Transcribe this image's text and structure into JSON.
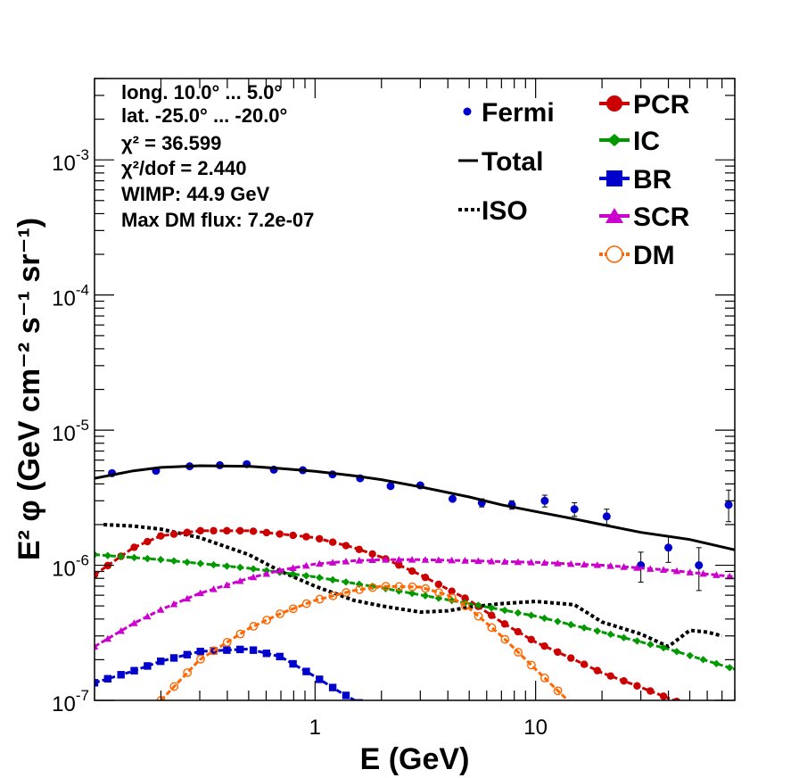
{
  "chart_data": {
    "type": "line",
    "xlabel": "E (GeV)",
    "ylabel": "E² φ (GeV cm⁻² s⁻¹ sr⁻¹)",
    "xscale": "log",
    "yscale": "log",
    "xlim": [
      0.1,
      80
    ],
    "ylim": [
      1e-07,
      0.004
    ],
    "grid": false,
    "legend_placement": "top-right",
    "x_tick_labels": [
      "1",
      "10"
    ],
    "y_tick_labels": [
      {
        "base": "10",
        "exp": "-7"
      },
      {
        "base": "10",
        "exp": "-6"
      },
      {
        "base": "10",
        "exp": "-5"
      },
      {
        "base": "10",
        "exp": "-4"
      },
      {
        "base": "10",
        "exp": "-3"
      }
    ],
    "annotations": [
      "long. 10.0° ... 5.0°",
      "lat. -25.0° ... -20.0°",
      "χ² = 36.599",
      "χ²/dof = 2.440",
      "WIMP: 44.9 GeV",
      "Max DM flux: 7.2e-07"
    ],
    "series": [
      {
        "name": "Fermi",
        "style": "points",
        "color": "#0000cc",
        "x": [
          0.12,
          0.19,
          0.27,
          0.37,
          0.49,
          0.65,
          0.88,
          1.2,
          1.6,
          2.2,
          3.0,
          4.2,
          5.7,
          7.8,
          11,
          15,
          21,
          30,
          40,
          55,
          75
        ],
        "y": [
          4.8e-06,
          5e-06,
          5.4e-06,
          5.5e-06,
          5.6e-06,
          5.1e-06,
          5.05e-06,
          4.7e-06,
          4.4e-06,
          3.85e-06,
          3.9e-06,
          3.1e-06,
          2.9e-06,
          2.8e-06,
          3e-06,
          2.6e-06,
          2.3e-06,
          1e-06,
          1.35e-06,
          1e-06,
          2.8e-06
        ],
        "err_low": [
          0,
          0,
          0,
          0,
          0,
          0,
          0,
          0,
          0,
          0,
          0,
          0,
          2e-07,
          2e-07,
          3e-07,
          3e-07,
          3e-07,
          2.5e-07,
          3e-07,
          3.5e-07,
          7e-07
        ],
        "err_high": [
          0,
          0,
          0,
          0,
          0,
          0,
          0,
          0,
          0,
          0,
          0,
          0,
          2e-07,
          2e-07,
          3e-07,
          3e-07,
          3e-07,
          2.5e-07,
          3e-07,
          3.5e-07,
          8e-07
        ]
      },
      {
        "name": "Total",
        "style": "solid",
        "color": "#000000",
        "x": [
          0.1,
          0.15,
          0.2,
          0.3,
          0.5,
          0.7,
          1,
          1.5,
          2,
          3,
          5,
          7,
          10,
          15,
          20,
          30,
          50,
          80
        ],
        "y": [
          4.4e-06,
          5e-06,
          5.3e-06,
          5.45e-06,
          5.4e-06,
          5.2e-06,
          4.95e-06,
          4.6e-06,
          4.3e-06,
          3.8e-06,
          3.2e-06,
          2.8e-06,
          2.5e-06,
          2.2e-06,
          2e-06,
          1.75e-06,
          1.55e-06,
          1.3e-06
        ]
      },
      {
        "name": "ISO",
        "style": "dotted",
        "color": "#000000",
        "x": [
          0.11,
          0.15,
          0.2,
          0.3,
          0.5,
          0.7,
          1,
          1.5,
          2,
          3,
          4,
          5,
          7,
          10,
          15,
          20,
          30,
          40,
          50,
          60,
          70
        ],
        "y": [
          2e-06,
          1.95e-06,
          1.85e-06,
          1.6e-06,
          1.2e-06,
          9e-07,
          7e-07,
          5.5e-07,
          5e-07,
          4.5e-07,
          4.6e-07,
          4.9e-07,
          5.2e-07,
          5.4e-07,
          5.1e-07,
          3.8e-07,
          3.1e-07,
          2.5e-07,
          3.3e-07,
          3.2e-07,
          3e-07
        ]
      },
      {
        "name": "PCR",
        "style": "markers-line",
        "marker": "circle",
        "color": "#cc0000",
        "x": [
          0.1,
          0.15,
          0.2,
          0.3,
          0.5,
          0.7,
          1,
          1.5,
          2,
          3,
          5,
          7,
          10,
          15,
          20,
          30,
          50
        ],
        "y": [
          8.5e-07,
          1.35e-06,
          1.65e-06,
          1.8e-06,
          1.8e-06,
          1.7e-06,
          1.6e-06,
          1.35e-06,
          1.15e-06,
          8.5e-07,
          5.5e-07,
          3.8e-07,
          2.7e-07,
          2e-07,
          1.6e-07,
          1.25e-07,
          9e-08
        ]
      },
      {
        "name": "IC",
        "style": "markers-line",
        "marker": "diamond",
        "color": "#009900",
        "x": [
          0.1,
          0.2,
          0.5,
          1,
          2,
          5,
          10,
          20,
          40,
          80
        ],
        "y": [
          1.2e-06,
          1.1e-06,
          9.5e-07,
          8.2e-07,
          6.8e-07,
          5.2e-07,
          4.2e-07,
          3.2e-07,
          2.4e-07,
          1.7e-07
        ]
      },
      {
        "name": "BR",
        "style": "markers-line",
        "marker": "square",
        "color": "#0000cc",
        "x": [
          0.1,
          0.15,
          0.2,
          0.3,
          0.5,
          0.7,
          1,
          1.3,
          1.6
        ],
        "y": [
          1.35e-07,
          1.65e-07,
          1.95e-07,
          2.3e-07,
          2.4e-07,
          2.1e-07,
          1.5e-07,
          1.15e-07,
          9.5e-08
        ]
      },
      {
        "name": "SCR",
        "style": "markers-line",
        "marker": "triangle",
        "color": "#cc00cc",
        "x": [
          0.1,
          0.15,
          0.2,
          0.3,
          0.5,
          0.7,
          1,
          1.5,
          2,
          3,
          5,
          10,
          20,
          40,
          80
        ],
        "y": [
          2.5e-07,
          3.7e-07,
          4.7e-07,
          6.2e-07,
          8e-07,
          9.2e-07,
          1.02e-06,
          1.08e-06,
          1.1e-06,
          1.1e-06,
          1.08e-06,
          1.05e-06,
          1e-06,
          9.2e-07,
          8.2e-07
        ]
      },
      {
        "name": "DM",
        "style": "markers-line",
        "marker": "open-circle",
        "color": "#ff6600",
        "x": [
          0.2,
          0.3,
          0.5,
          0.7,
          1,
          1.5,
          2,
          3,
          4,
          5,
          7,
          10,
          14
        ],
        "y": [
          1e-07,
          2e-07,
          3.4e-07,
          4.4e-07,
          5.5e-07,
          6.5e-07,
          7e-07,
          6.9e-07,
          6e-07,
          4.8e-07,
          3e-07,
          1.7e-07,
          1e-07
        ]
      }
    ]
  }
}
